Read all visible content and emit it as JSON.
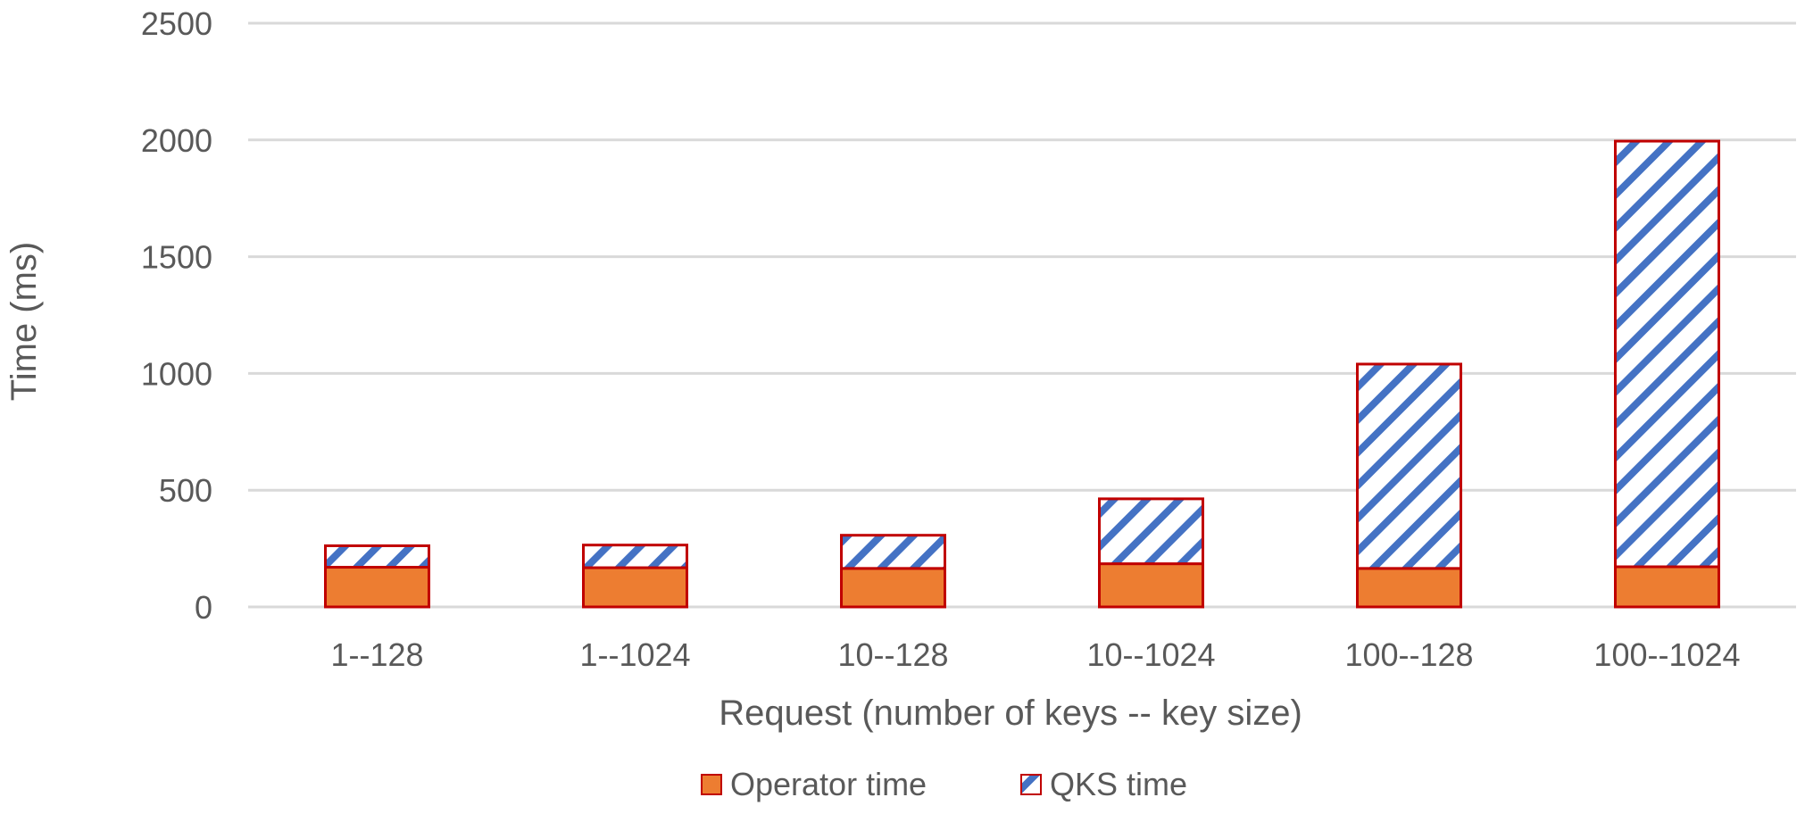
{
  "chart_data": {
    "type": "bar",
    "stacked": true,
    "categories": [
      "1--128",
      "1--1024",
      "10--128",
      "10--1024",
      "100--128",
      "100--1024"
    ],
    "series": [
      {
        "name": "Operator time",
        "values": [
          170,
          168,
          165,
          185,
          165,
          172
        ],
        "color": "#ED7D31",
        "fill": "solid"
      },
      {
        "name": "QKS time",
        "values": [
          92,
          97,
          142,
          278,
          875,
          1823
        ],
        "color": "#4472C4",
        "fill": "diagonal-stripes"
      }
    ],
    "bar_outline_color": "#C00000",
    "title": "",
    "xlabel": "Request (number of keys -- key size)",
    "ylabel": "Time (ms)",
    "ylim": [
      0,
      2500
    ],
    "yticks": [
      0,
      500,
      1000,
      1500,
      2000,
      2500
    ],
    "grid": true,
    "legend_position": "bottom"
  }
}
